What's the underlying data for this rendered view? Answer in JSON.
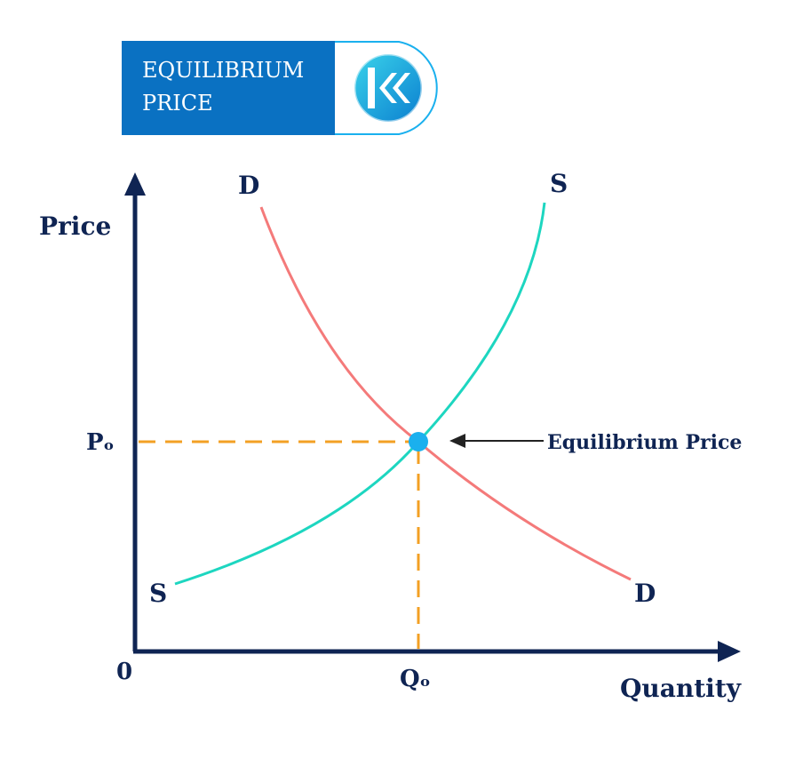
{
  "banner": {
    "line1": "EQUILIBRIUM",
    "line2": "PRICE",
    "logo_icon": "double-chevron-left-icon"
  },
  "axes": {
    "y_label": "Price",
    "x_label": "Quantity",
    "origin_label": "0",
    "price_marker": "Pₒ",
    "quantity_marker": "Qₒ"
  },
  "curves": {
    "demand_label_top": "D",
    "demand_label_bottom": "D",
    "supply_label_top": "S",
    "supply_label_bottom": "S"
  },
  "annotation": {
    "text": "Equilibrium Price"
  },
  "colors": {
    "banner_blue": "#0a71c2",
    "axis_navy": "#0f2453",
    "demand": "#f47a7a",
    "supply": "#1dd6c0",
    "guide": "#f3a024",
    "equilibrium_point": "#1ab0ee"
  }
}
